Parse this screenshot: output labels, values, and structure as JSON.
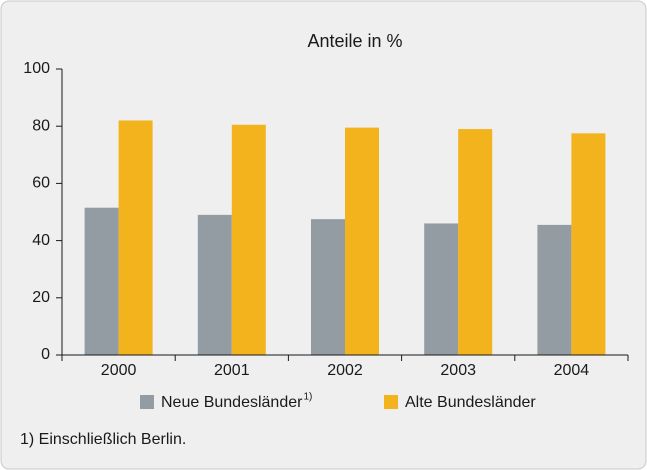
{
  "chart_data": {
    "type": "bar",
    "title": "Anteile in %",
    "categories": [
      "2000",
      "2001",
      "2002",
      "2003",
      "2004"
    ],
    "series": [
      {
        "name": "Neue Bundesländer",
        "footnote_marker": "1)",
        "color": "#949ca3",
        "values": [
          51.5,
          49,
          47.5,
          46,
          45.5
        ]
      },
      {
        "name": "Alte Bundesländer",
        "color": "#f2b31c",
        "values": [
          82,
          80.5,
          79.5,
          79,
          77.5
        ]
      }
    ],
    "ylim": [
      0,
      100
    ],
    "yticks": [
      0,
      20,
      40,
      60,
      80,
      100
    ],
    "grid": false,
    "legend": "bottom",
    "footnote": "1) Einschließlich Berlin."
  }
}
